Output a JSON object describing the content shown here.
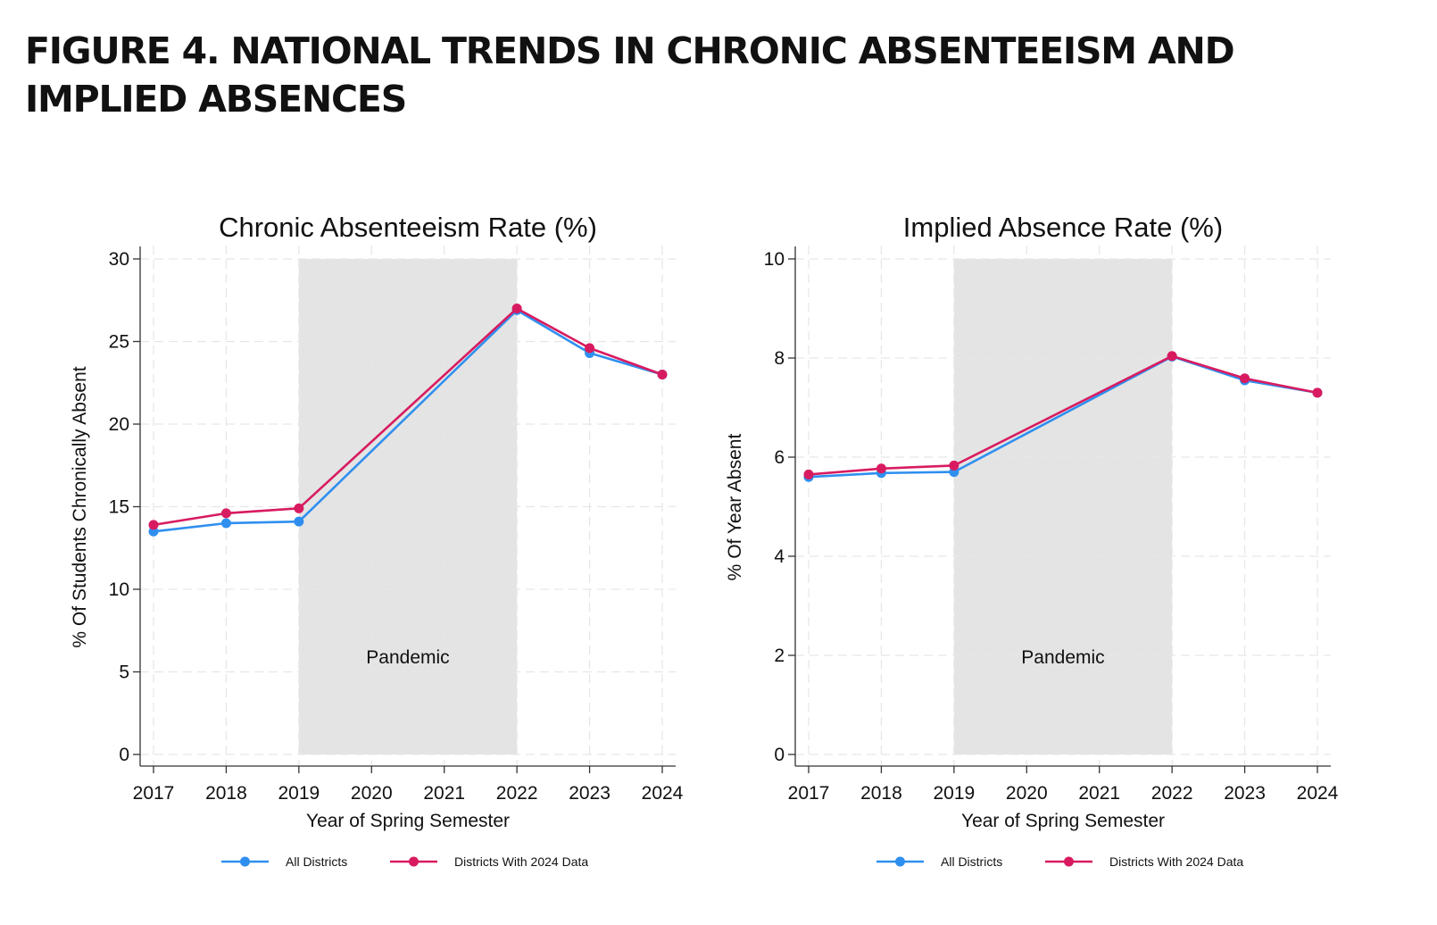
{
  "figure_title": "FIGURE 4. NATIONAL TRENDS IN CHRONIC ABSENTEEISM AND IMPLIED ABSENCES",
  "colors": {
    "all_districts": "#2f8fef",
    "districts_2024": "#d81b60",
    "pandemic_shade": "#e4e4e4",
    "grid": "#e6e6e6",
    "axis": "#333333"
  },
  "chart_data": [
    {
      "type": "line",
      "title": "Chronic Absenteeism Rate (%)",
      "xlabel": "Year of Spring Semester",
      "ylabel": "% Of Students Chronically Absent",
      "x_ticks": [
        "2017",
        "2018",
        "2019",
        "2020",
        "2021",
        "2022",
        "2023",
        "2024"
      ],
      "xlim": [
        2017,
        2024
      ],
      "ylim": [
        0,
        30
      ],
      "y_ticks": [
        0,
        5,
        10,
        15,
        20,
        25,
        30
      ],
      "grid": true,
      "legend_position": "bottom",
      "shaded_region": {
        "label": "Pandemic",
        "x_start": 2019,
        "x_end": 2022
      },
      "series": [
        {
          "name": "All Districts",
          "x": [
            2017,
            2018,
            2019,
            2022,
            2023,
            2024
          ],
          "values": [
            13.5,
            14.0,
            14.1,
            26.9,
            24.3,
            23.0
          ]
        },
        {
          "name": "Districts With 2024 Data",
          "x": [
            2017,
            2018,
            2019,
            2022,
            2023,
            2024
          ],
          "values": [
            13.9,
            14.6,
            14.9,
            27.0,
            24.6,
            23.0
          ]
        }
      ]
    },
    {
      "type": "line",
      "title": "Implied Absence Rate (%)",
      "xlabel": "Year of Spring Semester",
      "ylabel": "% Of Year Absent",
      "x_ticks": [
        "2017",
        "2018",
        "2019",
        "2020",
        "2021",
        "2022",
        "2023",
        "2024"
      ],
      "xlim": [
        2017,
        2024
      ],
      "ylim": [
        0,
        10
      ],
      "y_ticks": [
        0,
        2,
        4,
        6,
        8,
        10
      ],
      "grid": true,
      "legend_position": "bottom",
      "shaded_region": {
        "label": "Pandemic",
        "x_start": 2019,
        "x_end": 2022
      },
      "series": [
        {
          "name": "All Districts",
          "x": [
            2017,
            2018,
            2019,
            2022,
            2023,
            2024
          ],
          "values": [
            5.6,
            5.68,
            5.7,
            8.03,
            7.55,
            7.3
          ]
        },
        {
          "name": "Districts With 2024 Data",
          "x": [
            2017,
            2018,
            2019,
            2022,
            2023,
            2024
          ],
          "values": [
            5.65,
            5.77,
            5.83,
            8.04,
            7.59,
            7.3
          ]
        }
      ]
    }
  ]
}
